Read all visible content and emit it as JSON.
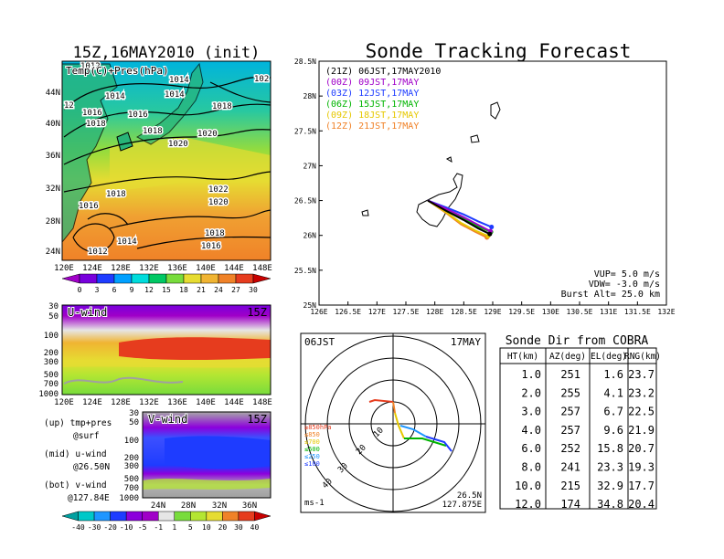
{
  "main_title": "Sonde Tracking Forecast",
  "init_title": "15Z,16MAY2010 (init)",
  "surface_panel": {
    "label": "Temp(C)+Pres(hPa)",
    "lat_ticks": [
      "44N",
      "40N",
      "36N",
      "32N",
      "28N",
      "24N"
    ],
    "lon_ticks": [
      "120E",
      "124E",
      "128E",
      "132E",
      "136E",
      "140E",
      "144E",
      "148E"
    ],
    "isobars": [
      "1014",
      "1012",
      "1014",
      "1014",
      "102",
      "12",
      "1016",
      "1018",
      "1016",
      "1018",
      "1018",
      "1020",
      "1020",
      "1022",
      "1020",
      "1018",
      "1016",
      "1018",
      "1014",
      "1012",
      "1016"
    ],
    "colorbar_ticks": [
      "0",
      "3",
      "6",
      "9",
      "12",
      "15",
      "18",
      "21",
      "24",
      "27",
      "30"
    ],
    "colorbar_colors": [
      "#a000c8",
      "#7800dc",
      "#1e3cff",
      "#00a0ff",
      "#00dcdc",
      "#00c864",
      "#78dc3c",
      "#e6dc32",
      "#f0b432",
      "#f08228",
      "#e63c1e",
      "#c80000"
    ]
  },
  "uwind_panel": {
    "label": "U-wind",
    "time": "15Z",
    "p_ticks": [
      "30",
      "50",
      "100",
      "200",
      "300",
      "500",
      "700",
      "1000"
    ],
    "lon_ticks": [
      "120E",
      "124E",
      "128E",
      "132E",
      "136E",
      "140E",
      "144E",
      "148E"
    ]
  },
  "vwind_panel": {
    "label": "V-wind",
    "time": "15Z",
    "p_ticks": [
      "30",
      "50",
      "100",
      "200",
      "300",
      "500",
      "700",
      "1000"
    ],
    "lat_ticks": [
      "24N",
      "28N",
      "32N",
      "36N"
    ],
    "colorbar_ticks": [
      "-40",
      "-30",
      "-20",
      "-10",
      "-5",
      "-1",
      "1",
      "5",
      "10",
      "20",
      "30",
      "40"
    ],
    "colorbar_colors": [
      "#00a0a0",
      "#00c8c8",
      "#1e96ff",
      "#1e3cff",
      "#8c00dc",
      "#a000c8",
      "#e6e6e6",
      "#78dc3c",
      "#b4e632",
      "#e6dc32",
      "#f08228",
      "#e63c1e",
      "#c80000"
    ]
  },
  "legend_notes": [
    "(up) tmp+pres",
    "@surf",
    "(mid) u-wind",
    "@26.50N",
    "(bot) v-wind",
    "@127.84E"
  ],
  "track_panel": {
    "lon_ticks": [
      "126E",
      "126.5E",
      "127E",
      "127.5E",
      "128E",
      "128.5E",
      "129E",
      "129.5E",
      "130E",
      "130.5E",
      "131E",
      "131.5E",
      "132E"
    ],
    "lat_ticks": [
      "28.5N",
      "28N",
      "27.5N",
      "27N",
      "26.5N",
      "26N",
      "25.5N",
      "25N"
    ],
    "legend": [
      {
        "text": "(21Z) 06JST,17MAY2010",
        "color": "#000000"
      },
      {
        "text": "(00Z) 09JST,17MAY",
        "color": "#a000c8"
      },
      {
        "text": "(03Z) 12JST,17MAY",
        "color": "#1e3cff"
      },
      {
        "text": "(06Z) 15JST,17MAY",
        "color": "#00b400"
      },
      {
        "text": "(09Z) 18JST,17MAY",
        "color": "#e6c800"
      },
      {
        "text": "(12Z) 21JST,17MAY",
        "color": "#f08228"
      }
    ],
    "params": [
      "VUP= 5.0 m/s",
      "VDW= -3.0 m/s",
      "Burst Alt= 25.0 km"
    ]
  },
  "polar_panel": {
    "time": "06JST",
    "date": "17MAY",
    "ring_labels": [
      "10",
      "20",
      "30",
      "40"
    ],
    "levels": [
      "≥850hPa",
      "≤850",
      "≤700",
      "≤500",
      "≤250",
      "≤100"
    ],
    "level_colors": [
      "#e63c1e",
      "#f08228",
      "#e6c800",
      "#00b400",
      "#1e96ff",
      "#1e3cff"
    ],
    "units": "ms-1",
    "lat": "26.5N",
    "lon": "127.875E"
  },
  "sonde_table": {
    "title": "Sonde Dir from COBRA",
    "headers": [
      "HT(km)",
      "AZ(deg)",
      "EL(deg)",
      "RNG(km)"
    ],
    "rows": [
      [
        "1.0",
        "251",
        "1.6",
        "23.7"
      ],
      [
        "2.0",
        "255",
        "4.1",
        "23.2"
      ],
      [
        "3.0",
        "257",
        "6.7",
        "22.5"
      ],
      [
        "4.0",
        "257",
        "9.6",
        "21.9"
      ],
      [
        "6.0",
        "252",
        "15.8",
        "20.7"
      ],
      [
        "8.0",
        "241",
        "23.3",
        "19.3"
      ],
      [
        "10.0",
        "215",
        "32.9",
        "17.7"
      ],
      [
        "12.0",
        "174",
        "34.8",
        "20.4"
      ]
    ]
  },
  "chart_data": [
    {
      "type": "line",
      "title": "Sonde Tracking Forecast",
      "xlim": [
        126,
        132
      ],
      "ylim": [
        25,
        28.5
      ],
      "series": [
        {
          "name": "(21Z) 06JST,17MAY2010",
          "x": [
            127.88,
            128.2,
            128.5,
            128.75,
            128.95
          ],
          "y": [
            26.5,
            26.35,
            26.22,
            26.1,
            26.02
          ]
        },
        {
          "name": "(00Z) 09JST,17MAY",
          "x": [
            127.88,
            128.2,
            128.5,
            128.75,
            128.96
          ],
          "y": [
            26.5,
            26.38,
            26.26,
            26.15,
            26.06
          ]
        },
        {
          "name": "(03Z) 12JST,17MAY",
          "x": [
            127.88,
            128.2,
            128.5,
            128.75,
            128.98
          ],
          "y": [
            26.5,
            26.4,
            26.3,
            26.2,
            26.12
          ]
        },
        {
          "name": "(06Z) 15JST,17MAY",
          "x": [
            127.88,
            128.2,
            128.5,
            128.75,
            128.97
          ],
          "y": [
            26.5,
            26.36,
            26.24,
            26.13,
            26.05
          ]
        },
        {
          "name": "(09Z) 18JST,17MAY",
          "x": [
            127.88,
            128.2,
            128.45,
            128.7,
            128.92
          ],
          "y": [
            26.5,
            26.33,
            26.18,
            26.07,
            25.99
          ]
        },
        {
          "name": "(12Z) 21JST,17MAY",
          "x": [
            127.88,
            128.2,
            128.45,
            128.7,
            128.9
          ],
          "y": [
            26.5,
            26.32,
            26.16,
            26.05,
            25.97
          ]
        }
      ]
    },
    {
      "type": "table",
      "title": "Sonde Dir from COBRA",
      "columns": [
        "HT(km)",
        "AZ(deg)",
        "EL(deg)",
        "RNG(km)"
      ],
      "rows": [
        [
          1.0,
          251,
          1.6,
          23.7
        ],
        [
          2.0,
          255,
          4.1,
          23.2
        ],
        [
          3.0,
          257,
          6.7,
          22.5
        ],
        [
          4.0,
          257,
          9.6,
          21.9
        ],
        [
          6.0,
          252,
          15.8,
          20.7
        ],
        [
          8.0,
          241,
          23.3,
          19.3
        ],
        [
          10.0,
          215,
          32.9,
          17.7
        ],
        [
          12.0,
          174,
          34.8,
          20.4
        ]
      ]
    }
  ]
}
